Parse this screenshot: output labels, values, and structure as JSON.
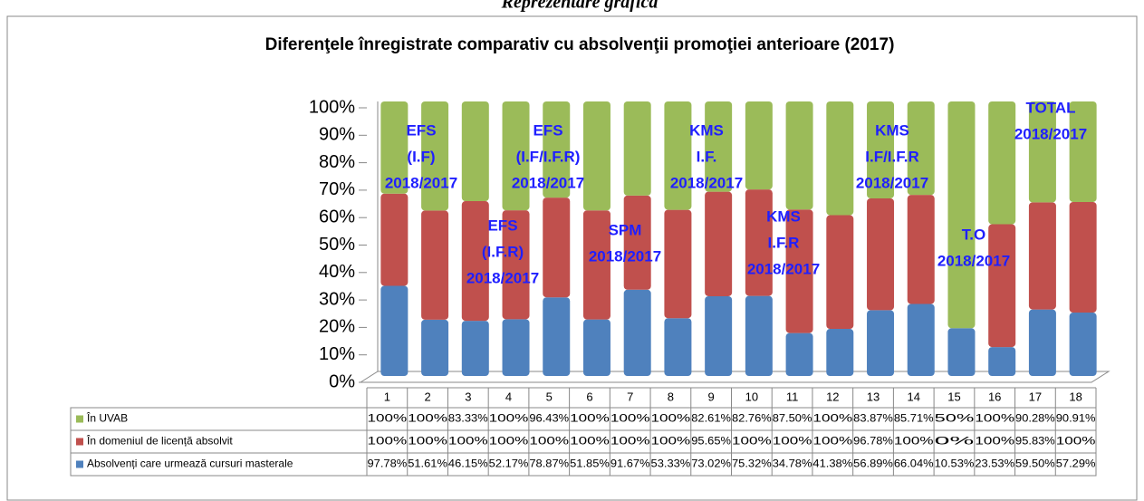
{
  "chart_data": {
    "type": "bar",
    "stacked_percent": true,
    "heading": "Reprezentare grafică",
    "title": "Diferenţele înregistrate comparativ cu absolvenţii promoţiei anterioare (2017)",
    "categories": [
      "1",
      "2",
      "3",
      "4",
      "5",
      "6",
      "7",
      "8",
      "9",
      "10",
      "11",
      "12",
      "13",
      "14",
      "15",
      "16",
      "17",
      "18"
    ],
    "series": [
      {
        "name": "În UVAB",
        "color": "#9bbb59",
        "values": [
          100,
          100,
          83.33,
          100,
          96.43,
          100,
          100,
          100,
          82.61,
          82.76,
          87.5,
          100,
          83.87,
          85.71,
          50,
          100,
          90.28,
          90.91
        ],
        "value_labels": [
          "100%",
          "100%",
          "83.33%",
          "100%",
          "96.43%",
          "100%",
          "100%",
          "100%",
          "82.61%",
          "82.76%",
          "87.50%",
          "100%",
          "83.87%",
          "85.71%",
          "50%",
          "100%",
          "90.28%",
          "90.91%"
        ]
      },
      {
        "name": "În domeniul de licență absolvit",
        "color": "#c0504d",
        "values": [
          100,
          100,
          100,
          100,
          100,
          100,
          100,
          100,
          95.65,
          100,
          100,
          100,
          96.78,
          100,
          0,
          100,
          95.83,
          100
        ],
        "value_labels": [
          "100%",
          "100%",
          "100%",
          "100%",
          "100%",
          "100%",
          "100%",
          "100%",
          "95.65%",
          "100%",
          "100%",
          "100%",
          "96.78%",
          "100%",
          "0%",
          "100%",
          "95.83%",
          "100%"
        ]
      },
      {
        "name": "Absolvenți care urmează cursuri masterale",
        "color": "#4f81bd",
        "values": [
          97.78,
          51.61,
          46.15,
          52.17,
          78.87,
          51.85,
          91.67,
          53.33,
          73.02,
          75.32,
          34.78,
          41.38,
          56.89,
          66.04,
          10.53,
          23.53,
          59.5,
          57.29
        ],
        "value_labels": [
          "97.78%",
          "51.61%",
          "46.15%",
          "52.17%",
          "78.87%",
          "51.85%",
          "91.67%",
          "53.33%",
          "73.02%",
          "75.32%",
          "34.78%",
          "41.38%",
          "56.89%",
          "66.04%",
          "10.53%",
          "23.53%",
          "59.50%",
          "57.29%"
        ]
      }
    ],
    "ylim": [
      0,
      100
    ],
    "yticks": [
      {
        "value": 0,
        "label": "0%"
      },
      {
        "value": 10,
        "label": "10%"
      },
      {
        "value": 20,
        "label": "20%"
      },
      {
        "value": 30,
        "label": "30%"
      },
      {
        "value": 40,
        "label": "40%"
      },
      {
        "value": 50,
        "label": "50%"
      },
      {
        "value": 60,
        "label": "60%"
      },
      {
        "value": 70,
        "label": "70%"
      },
      {
        "value": 80,
        "label": "80%"
      },
      {
        "value": 90,
        "label": "90%"
      },
      {
        "value": 100,
        "label": "100%"
      }
    ],
    "annotations": [
      [
        "EFS",
        "(I.F)",
        "2018/2017"
      ],
      [
        "EFS",
        "(I.F/I.F.R)",
        "2018/2017"
      ],
      [
        "EFS",
        "(I.F.R)",
        "2018/2017"
      ],
      [
        "SPM",
        "2018/2017"
      ],
      [
        "KMS",
        "I.F.",
        "2018/2017"
      ],
      [
        "KMS",
        "I.F.R",
        "2018/2017"
      ],
      [
        "KMS",
        "I.F/I.F.R",
        "2018/2017"
      ],
      [
        "T.O",
        "2018/2017"
      ],
      [
        "TOTAL",
        "2018/2017"
      ]
    ]
  }
}
